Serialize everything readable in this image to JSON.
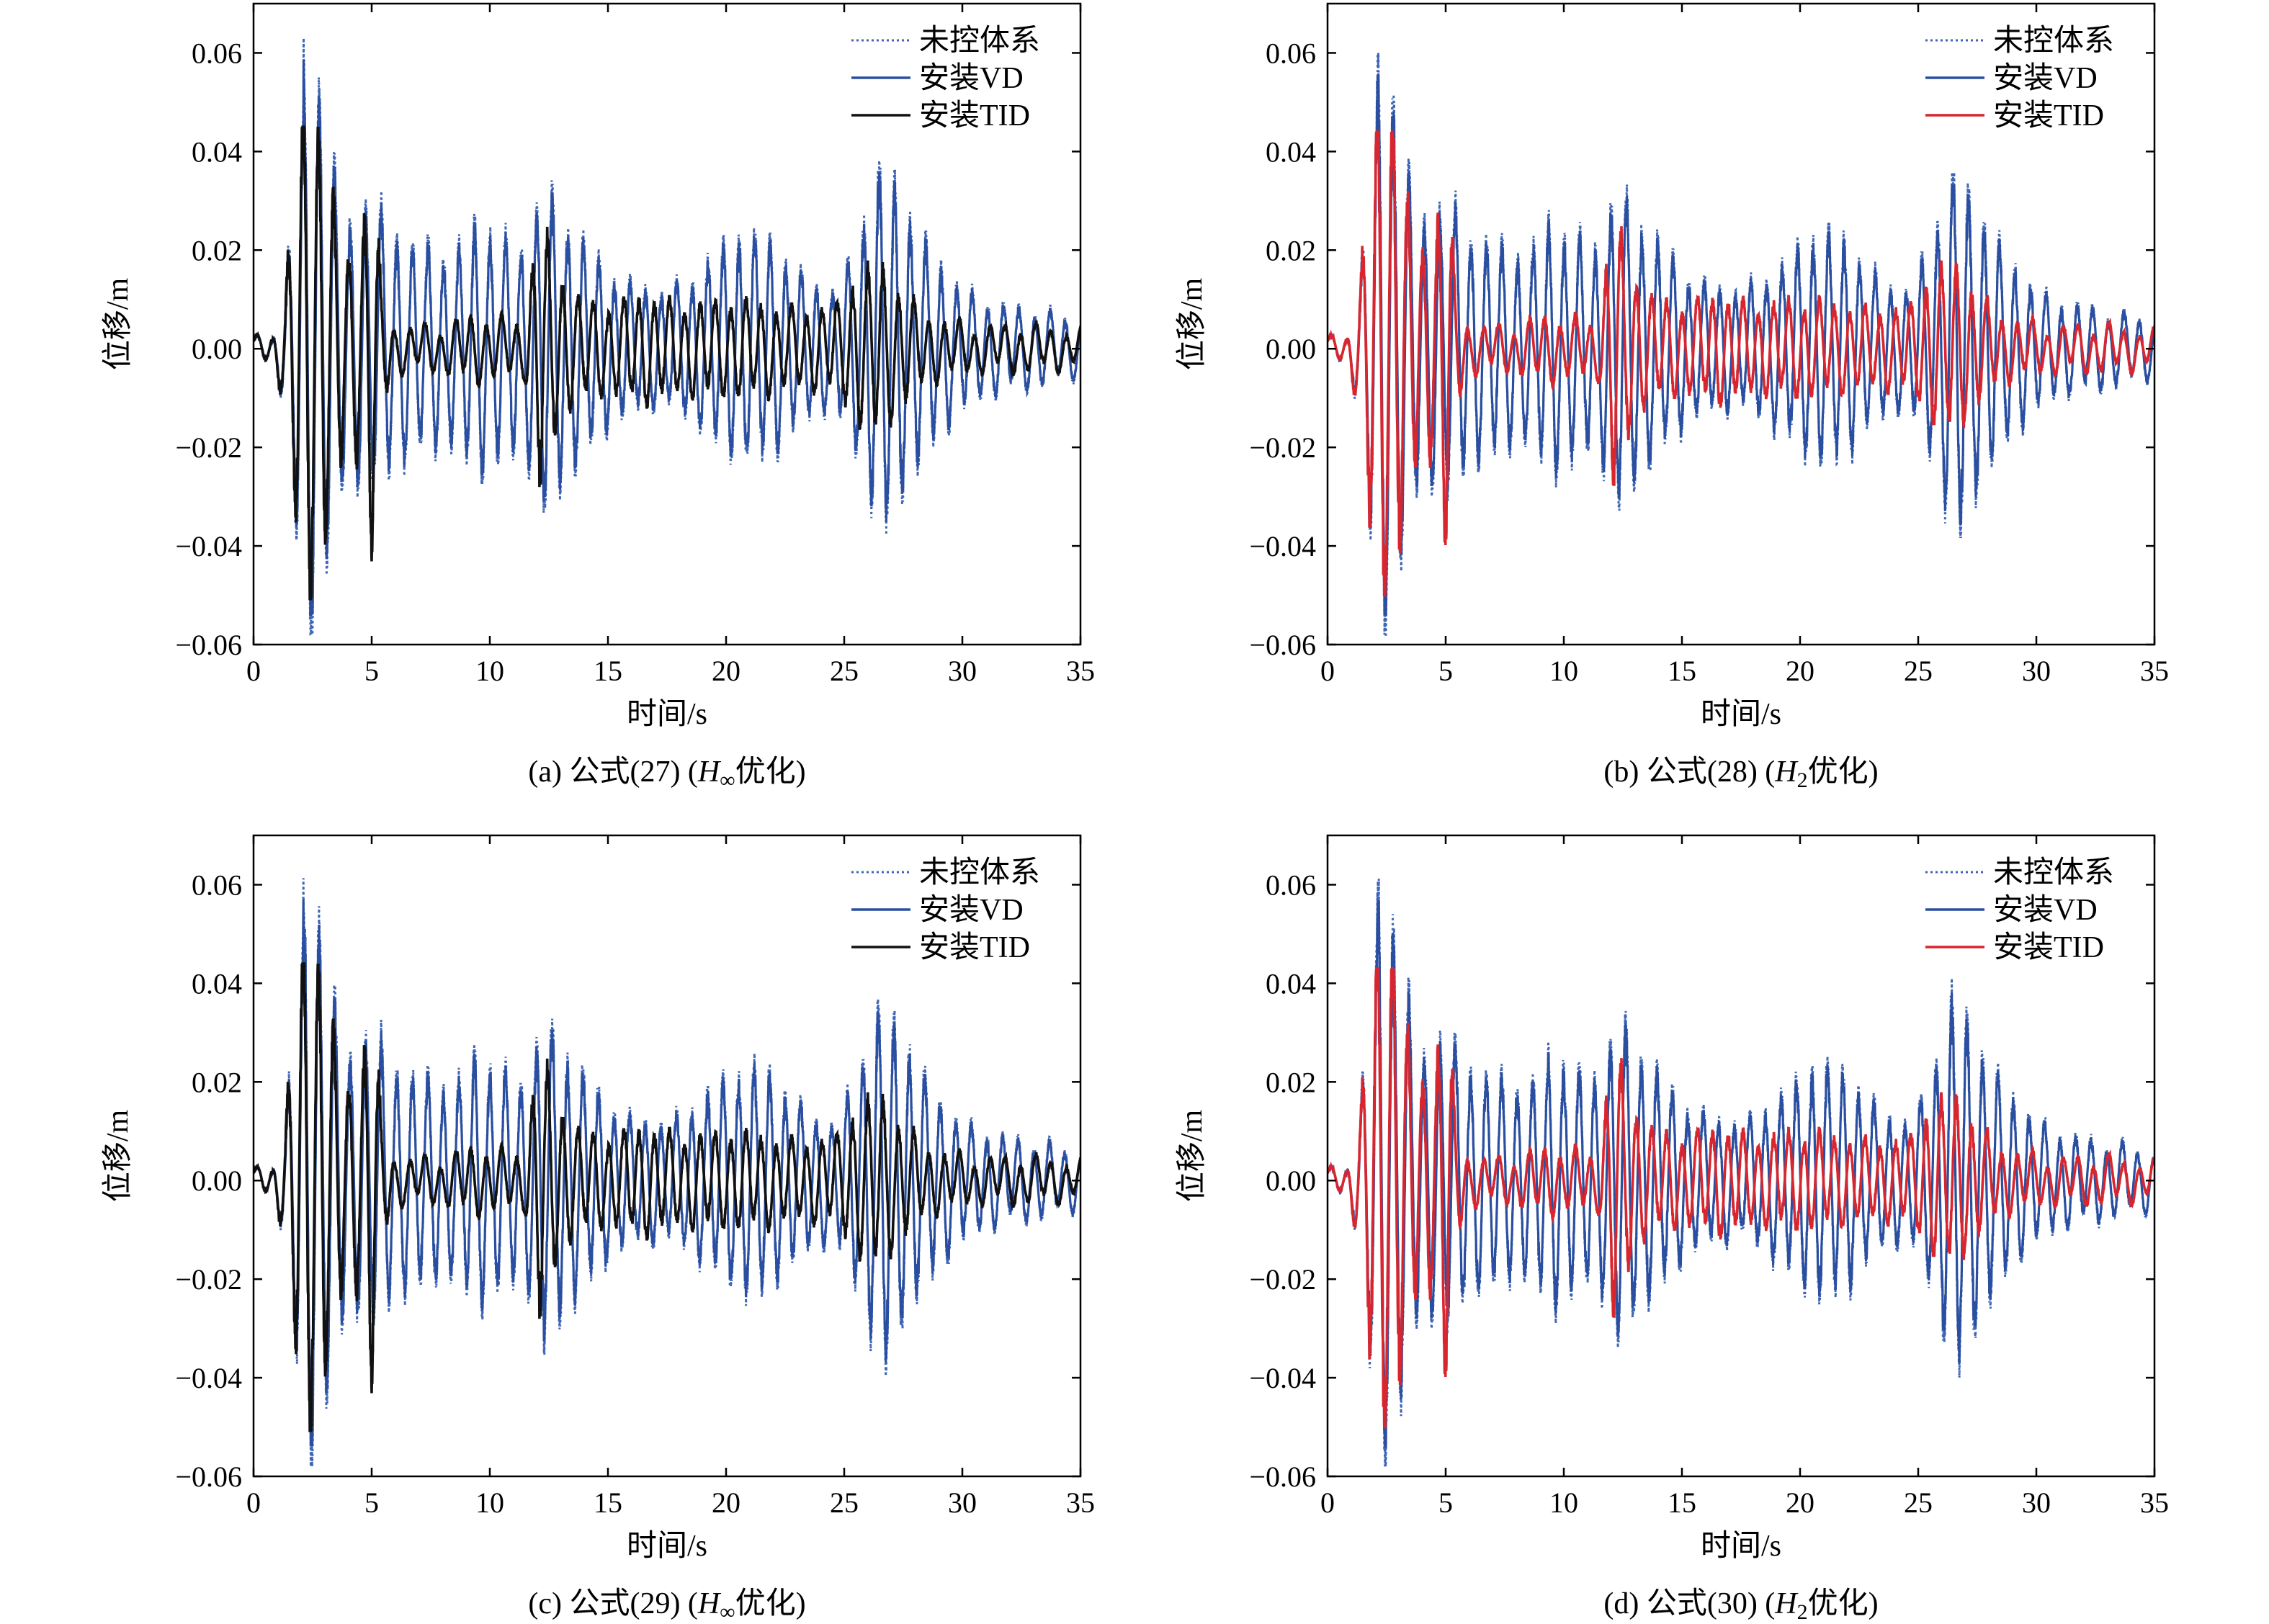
{
  "colors": {
    "uncontrolled": "#3f66b6",
    "vd": "#2a4fa0",
    "tid_black": "#111111",
    "tid_red": "#d8262f",
    "axis": "#000000"
  },
  "chart_data": [
    {
      "id": "a",
      "type": "line",
      "caption": {
        "prefix": "(a) 公式(27) (",
        "H": "H",
        "sub": "∞",
        "suffix": "优化)"
      },
      "xlabel": "时间/s",
      "ylabel": "位移/m",
      "xlim": [
        0,
        35
      ],
      "ylim": [
        -0.06,
        0.07
      ],
      "xticks": [
        "0",
        "5",
        "10",
        "15",
        "20",
        "25",
        "30",
        "35"
      ],
      "yticks": [
        "−0.06",
        "−0.04",
        "−0.02",
        "0.00",
        "0.02",
        "0.04",
        "0.06"
      ],
      "legend_position": "top-right",
      "series": [
        {
          "name": "未控体系",
          "style": "dotted",
          "color": "#3f66b6",
          "peak": 0.063,
          "trough": -0.058
        },
        {
          "name": "安装VD",
          "style": "solid",
          "color": "#2a4fa0",
          "peak": 0.06,
          "trough": -0.056
        },
        {
          "name": "安装TID",
          "style": "solid",
          "color": "#111111",
          "peak": 0.045,
          "trough": -0.051
        }
      ]
    },
    {
      "id": "b",
      "type": "line",
      "caption": {
        "prefix": "(b) 公式(28) (",
        "H": "H",
        "sub": "2",
        "suffix": "优化)"
      },
      "xlabel": "时间/s",
      "ylabel": "位移/m",
      "xlim": [
        0,
        35
      ],
      "ylim": [
        -0.06,
        0.07
      ],
      "xticks": [
        "0",
        "5",
        "10",
        "15",
        "20",
        "25",
        "30",
        "35"
      ],
      "yticks": [
        "−0.06",
        "−0.04",
        "−0.02",
        "0.00",
        "0.02",
        "0.04",
        "0.06"
      ],
      "legend_position": "top-right",
      "series": [
        {
          "name": "未控体系",
          "style": "dotted",
          "color": "#3f66b6",
          "peak": 0.063,
          "trough": -0.058
        },
        {
          "name": "安装VD",
          "style": "solid",
          "color": "#2a4fa0",
          "peak": 0.06,
          "trough": -0.056
        },
        {
          "name": "安装TID",
          "style": "solid",
          "color": "#d8262f",
          "peak": 0.044,
          "trough": -0.05
        }
      ]
    },
    {
      "id": "c",
      "type": "line",
      "caption": {
        "prefix": "(c) 公式(29) (",
        "H": "H",
        "sub": "∞",
        "suffix": "优化)"
      },
      "xlabel": "时间/s",
      "ylabel": "位移/m",
      "xlim": [
        0,
        35
      ],
      "ylim": [
        -0.06,
        0.07
      ],
      "xticks": [
        "0",
        "5",
        "10",
        "15",
        "20",
        "25",
        "30",
        "35"
      ],
      "yticks": [
        "−0.06",
        "−0.04",
        "−0.02",
        "0.00",
        "0.02",
        "0.04",
        "0.06"
      ],
      "legend_position": "top-right",
      "series": [
        {
          "name": "未控体系",
          "style": "dotted",
          "color": "#3f66b6",
          "peak": 0.063,
          "trough": -0.058
        },
        {
          "name": "安装VD",
          "style": "solid",
          "color": "#2a4fa0",
          "peak": 0.06,
          "trough": -0.056
        },
        {
          "name": "安装TID",
          "style": "solid",
          "color": "#111111",
          "peak": 0.044,
          "trough": -0.051
        }
      ]
    },
    {
      "id": "d",
      "type": "line",
      "caption": {
        "prefix": "(d) 公式(30) (",
        "H": "H",
        "sub": "2",
        "suffix": "优化)"
      },
      "xlabel": "时间/s",
      "ylabel": "位移/m",
      "xlim": [
        0,
        35
      ],
      "ylim": [
        -0.06,
        0.07
      ],
      "xticks": [
        "0",
        "5",
        "10",
        "15",
        "20",
        "25",
        "30",
        "35"
      ],
      "yticks": [
        "−0.06",
        "−0.04",
        "−0.02",
        "0.00",
        "0.02",
        "0.04",
        "0.06"
      ],
      "legend_position": "top-right",
      "series": [
        {
          "name": "未控体系",
          "style": "dotted",
          "color": "#3f66b6",
          "peak": 0.063,
          "trough": -0.058
        },
        {
          "name": "安装VD",
          "style": "solid",
          "color": "#2a4fa0",
          "peak": 0.06,
          "trough": -0.056
        },
        {
          "name": "安装TID",
          "style": "solid",
          "color": "#d8262f",
          "peak": 0.043,
          "trough": -0.05
        }
      ]
    }
  ]
}
